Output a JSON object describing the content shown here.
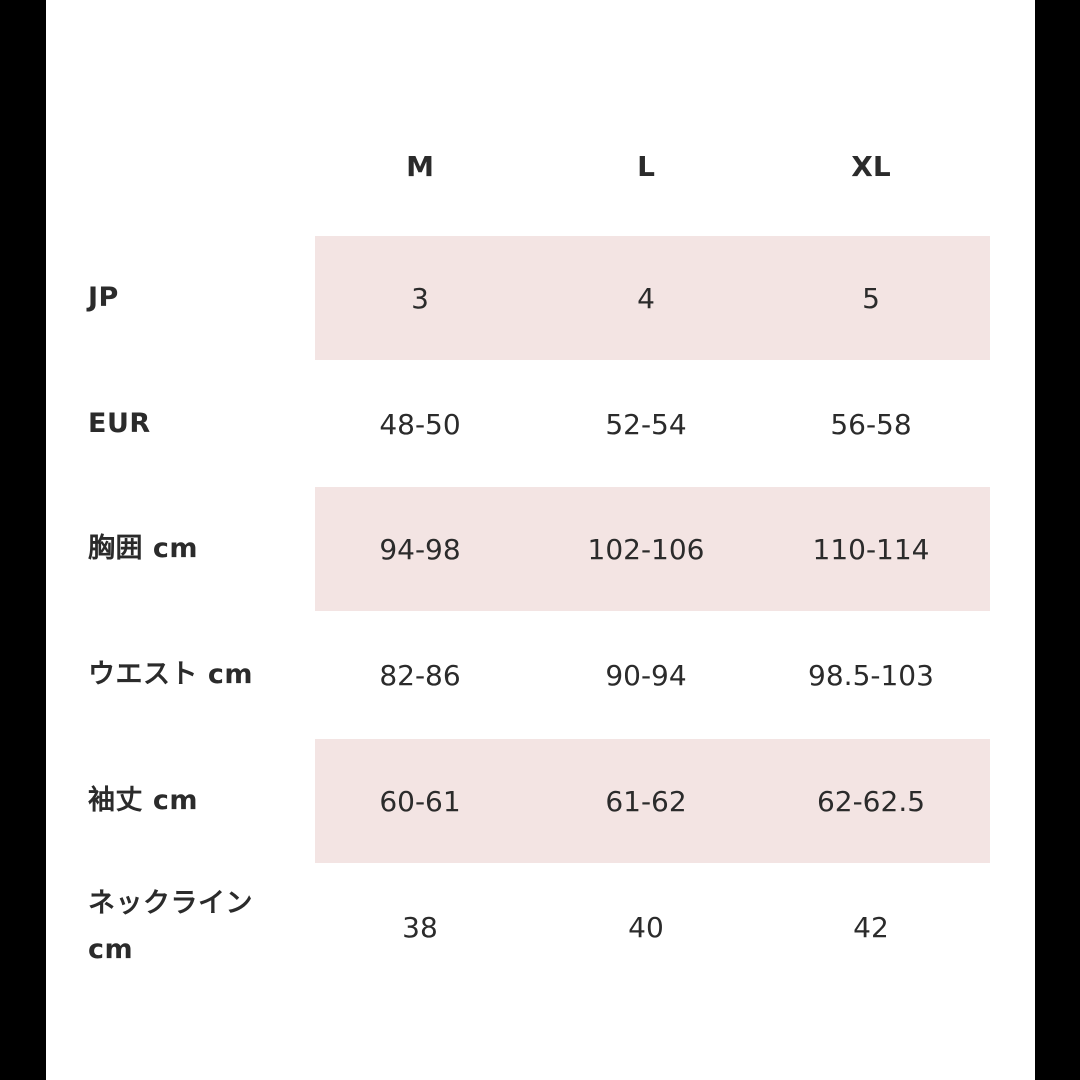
{
  "columns": [
    "M",
    "L",
    "XL"
  ],
  "band_color": "#f3e4e3",
  "rows": [
    {
      "label": "JP",
      "values": [
        "3",
        "4",
        "5"
      ]
    },
    {
      "label": "EUR",
      "values": [
        "48-50",
        "52-54",
        "56-58"
      ]
    },
    {
      "label": "胸囲 cm",
      "values": [
        "94-98",
        "102-106",
        "110-114"
      ]
    },
    {
      "label": "ウエスト cm",
      "values": [
        "82-86",
        "90-94",
        "98.5-103"
      ]
    },
    {
      "label": "袖丈 cm",
      "values": [
        "60-61",
        "61-62",
        "62-62.5"
      ]
    },
    {
      "label": "ネックライン cm",
      "values": [
        "38",
        "40",
        "42"
      ]
    }
  ]
}
